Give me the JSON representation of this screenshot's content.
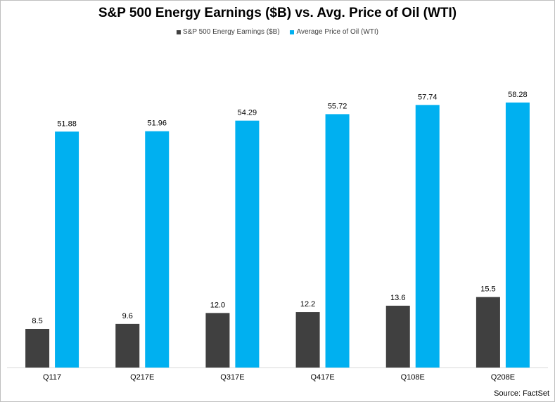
{
  "chart_data": {
    "type": "bar",
    "title": "S&P 500 Energy Earnings ($B) vs. Avg. Price of Oil (WTI)",
    "categories": [
      "Q117",
      "Q217E",
      "Q317E",
      "Q417E",
      "Q108E",
      "Q208E"
    ],
    "series": [
      {
        "name": "S&P 500 Energy Earnings ($B)",
        "color": "#404040",
        "values": [
          8.5,
          9.6,
          12.0,
          12.2,
          13.6,
          15.5
        ],
        "labels": [
          "8.5",
          "9.6",
          "12.0",
          "12.2",
          "13.6",
          "15.5"
        ]
      },
      {
        "name": "Average Price of Oil (WTI)",
        "color": "#00b0f0",
        "values": [
          51.88,
          51.96,
          54.29,
          55.72,
          57.74,
          58.28
        ],
        "labels": [
          "51.88",
          "51.96",
          "54.29",
          "55.72",
          "57.74",
          "58.28"
        ]
      }
    ],
    "xlabel": "",
    "ylabel": "",
    "legend_position": "top-center",
    "grid": false
  },
  "source": "Source: FactSet"
}
